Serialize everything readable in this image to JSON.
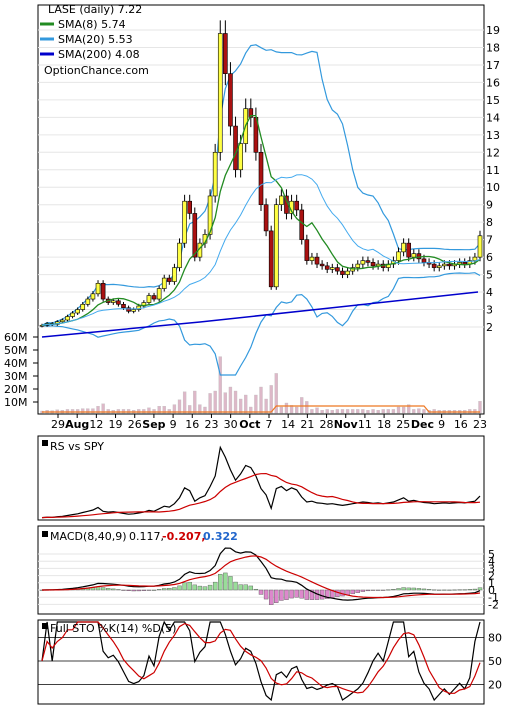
{
  "chart_data": [
    {
      "type": "candlestick",
      "title": "LASE (daily) 7.22",
      "watermark": "OptionChance.com",
      "legend_position": "top-left",
      "legend": [
        {
          "label": "SMA(8) 5.74",
          "color": "#228B22"
        },
        {
          "label": "SMA(20) 5.53",
          "color": "#3399dd"
        },
        {
          "label": "SMA(200) 4.08",
          "color": "#0000cc"
        }
      ],
      "price_ticks": [
        "19",
        "18",
        "17",
        "16",
        "15",
        "14",
        "13",
        "12",
        "11",
        "10",
        "9",
        "8",
        "7",
        "6",
        "5",
        "4",
        "3",
        "2"
      ],
      "ylim": [
        1,
        20
      ],
      "volume_ticks": [
        "60M",
        "50M",
        "40M",
        "30M",
        "20M",
        "10M"
      ],
      "x_tick_labels": [
        "29",
        "Aug",
        "12",
        "19",
        "26",
        "Sep",
        "9",
        "16",
        "23",
        "30",
        "Oct",
        "7",
        "14",
        "21",
        "28",
        "Nov",
        "11",
        "18",
        "25",
        "Dec",
        "9",
        "16",
        "23"
      ],
      "bold_x_labels": [
        "Aug",
        "Sep",
        "Oct",
        "Nov",
        "Dec"
      ],
      "close_prices": [
        2.1,
        2.2,
        2.15,
        2.3,
        2.4,
        2.6,
        2.8,
        3.0,
        3.3,
        3.6,
        3.9,
        4.5,
        3.6,
        3.4,
        3.5,
        3.3,
        3.1,
        2.9,
        3.0,
        3.2,
        3.4,
        3.8,
        3.6,
        4.2,
        4.8,
        4.6,
        5.4,
        6.8,
        9.2,
        8.5,
        6.0,
        6.8,
        7.3,
        9.5,
        12.0,
        18.8,
        16.5,
        13.5,
        11.0,
        12.5,
        14.5,
        14.0,
        12.0,
        9.0,
        7.5,
        4.3,
        9.0,
        9.5,
        8.5,
        9.2,
        8.7,
        7.0,
        5.8,
        6.0,
        5.6,
        5.5,
        5.3,
        5.4,
        5.2,
        5.0,
        5.2,
        5.4,
        5.6,
        5.8,
        5.7,
        5.5,
        5.6,
        5.4,
        5.6,
        5.8,
        6.3,
        6.8,
        6.0,
        6.2,
        5.9,
        5.7,
        5.6,
        5.4,
        5.5,
        5.6,
        5.5,
        5.6,
        5.7,
        5.6,
        5.8,
        6.0,
        7.22
      ]
    },
    {
      "type": "line",
      "title": "RS vs SPY",
      "series": []
    },
    {
      "type": "line+bar",
      "title_prefix": "MACD(8,40,9)",
      "values": [
        "0.117,",
        "-0.207,",
        "0.322"
      ],
      "value_colors": [
        "#000000",
        "#cc0000",
        "#2266cc"
      ],
      "y_ticks": [
        "5",
        "4",
        "3",
        "2",
        "1",
        "0",
        "-1",
        "-2"
      ]
    },
    {
      "type": "line",
      "title": "Full STO %K(14) %D(5)",
      "y_ticks": [
        "80",
        "50",
        "20"
      ]
    }
  ]
}
